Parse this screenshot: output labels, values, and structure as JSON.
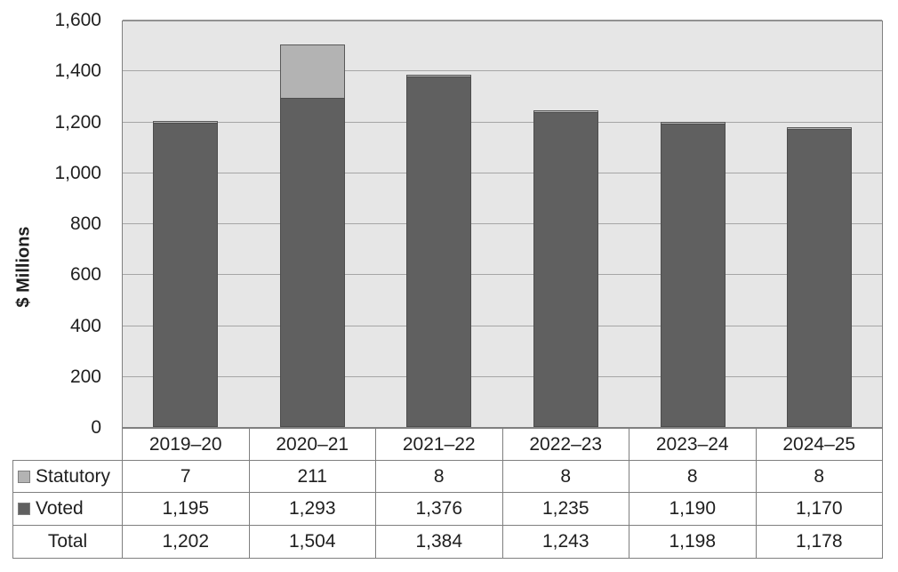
{
  "chart_data": {
    "type": "bar",
    "stacked": true,
    "title": "",
    "xlabel": "",
    "ylabel": "$ Millions",
    "categories": [
      "2019–20",
      "2020–21",
      "2021–22",
      "2022–23",
      "2023–24",
      "2024–25"
    ],
    "series": [
      {
        "name": "Statutory",
        "values": [
          7,
          211,
          8,
          8,
          8,
          8
        ],
        "display": [
          "7",
          "211",
          "8",
          "8",
          "8",
          "8"
        ],
        "fill": "#b3b3b3",
        "border": "#595959",
        "stack_position": "top"
      },
      {
        "name": "Voted",
        "values": [
          1195,
          1293,
          1376,
          1235,
          1190,
          1170
        ],
        "display": [
          "1,195",
          "1,293",
          "1,376",
          "1,235",
          "1,190",
          "1,170"
        ],
        "fill": "#606060",
        "border": "#4d4d4d",
        "stack_position": "bottom"
      }
    ],
    "total_row": {
      "name": "Total",
      "values": [
        1202,
        1504,
        1384,
        1243,
        1198,
        1178
      ],
      "display": [
        "1,202",
        "1,504",
        "1,384",
        "1,243",
        "1,198",
        "1,178"
      ]
    },
    "ylim": [
      0,
      1600
    ],
    "ytick_step": 200,
    "ytick_labels": [
      "0",
      "200",
      "400",
      "600",
      "800",
      "1,000",
      "1,200",
      "1,400",
      "1,600"
    ],
    "grid": true,
    "legend_position": "table-left"
  },
  "colors": {
    "plot_bg": "#e6e6e6",
    "gridline": "#a6a6a6",
    "plot_border": "#808080",
    "table_border": "#7f7f7f",
    "text": "#1f1f1f"
  }
}
